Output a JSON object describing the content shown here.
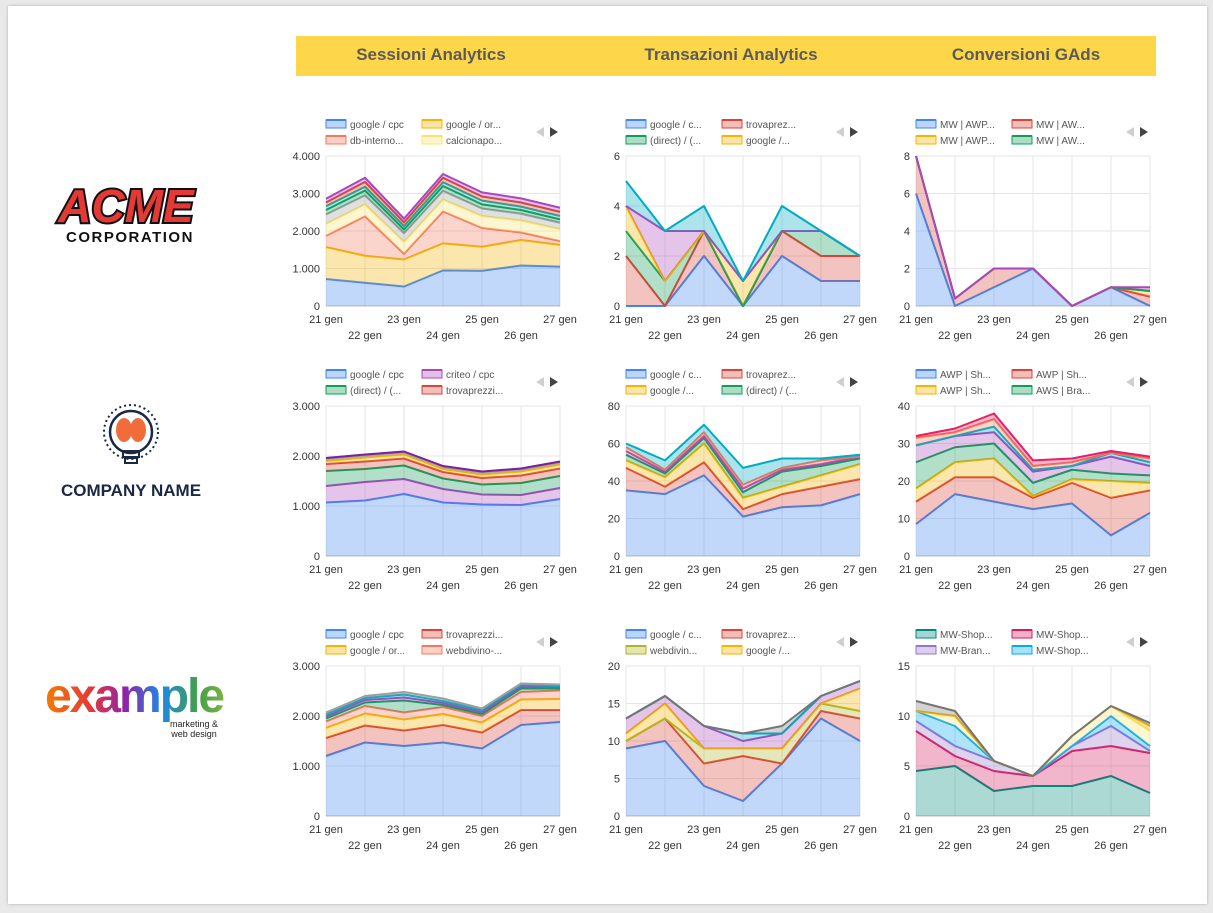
{
  "columns": [
    "Sessioni Analytics",
    "Transazioni Analytics",
    "Conversioni GAds"
  ],
  "logos": {
    "acme": {
      "line1": "ACME",
      "line2": "CORPORATION"
    },
    "company": {
      "name": "COMPANY NAME"
    },
    "example": {
      "word": "example",
      "tagline1": "marketing &",
      "tagline2": "web design"
    }
  },
  "chart_data": [
    {
      "type": "area",
      "stacked": true,
      "x": [
        "21 gen",
        "22 gen",
        "23 gen",
        "24 gen",
        "25 gen",
        "26 gen",
        "27 gen"
      ],
      "ylim": [
        0,
        4000
      ],
      "yticks": [
        0,
        1000,
        2000,
        3000,
        4000
      ],
      "ytick_labels": [
        "0",
        "1.000",
        "2.000",
        "3.000",
        "4.000"
      ],
      "legend": [
        "google / cpc",
        "google / or...",
        "db-interno...",
        "calcionapo..."
      ],
      "series": [
        {
          "name": "google / cpc",
          "color": "#4285f4",
          "values": [
            720,
            620,
            520,
            950,
            940,
            1080,
            1050
          ]
        },
        {
          "name": "google / or...",
          "color": "#f4b400",
          "values": [
            850,
            720,
            720,
            720,
            640,
            680,
            580
          ]
        },
        {
          "name": "db-interno...",
          "color": "#f4785f",
          "values": [
            300,
            1050,
            150,
            850,
            500,
            200,
            100
          ]
        },
        {
          "name": "calcionapo...",
          "color": "#fbe36c",
          "values": [
            320,
            320,
            320,
            320,
            320,
            320,
            320
          ]
        },
        {
          "color": "#9e9e9e",
          "values": [
            250,
            240,
            230,
            230,
            200,
            180,
            170
          ]
        },
        {
          "color": "#0f9d58",
          "values": [
            120,
            130,
            100,
            130,
            110,
            100,
            90
          ]
        },
        {
          "color": "#26a69a",
          "values": [
            100,
            100,
            90,
            100,
            100,
            90,
            90
          ]
        },
        {
          "color": "#db4437",
          "values": [
            100,
            130,
            100,
            120,
            110,
            110,
            110
          ]
        },
        {
          "color": "#ab47bc",
          "values": [
            100,
            110,
            100,
            100,
            110,
            110,
            110
          ]
        }
      ]
    },
    {
      "type": "area",
      "stacked": true,
      "x": [
        "21 gen",
        "22 gen",
        "23 gen",
        "24 gen",
        "25 gen",
        "26 gen",
        "27 gen"
      ],
      "ylim": [
        0,
        6
      ],
      "yticks": [
        0,
        2,
        4,
        6
      ],
      "ytick_labels": [
        "0",
        "2",
        "4",
        "6"
      ],
      "legend": [
        "google / c...",
        "trovaprez...",
        "(direct) / (...",
        "google /..."
      ],
      "series": [
        {
          "name": "google / c...",
          "color": "#4285f4",
          "values": [
            0,
            0,
            2,
            0,
            2,
            1,
            1
          ]
        },
        {
          "name": "trovaprez...",
          "color": "#db4437",
          "values": [
            2,
            0,
            1,
            0,
            1,
            1,
            1
          ]
        },
        {
          "name": "(direct) / (...",
          "color": "#0f9d58",
          "values": [
            1,
            1,
            0,
            0,
            0,
            1,
            0
          ]
        },
        {
          "name": "google /...",
          "color": "#f4b400",
          "values": [
            1,
            0,
            0,
            1,
            0,
            0,
            0
          ]
        },
        {
          "color": "#ab47bc",
          "values": [
            0,
            2,
            0,
            0,
            0,
            0,
            0
          ]
        },
        {
          "color": "#00acc1",
          "values": [
            1,
            0,
            1,
            0,
            1,
            0,
            0
          ]
        }
      ]
    },
    {
      "type": "area",
      "stacked": true,
      "x": [
        "21 gen",
        "22 gen",
        "23 gen",
        "24 gen",
        "25 gen",
        "26 gen",
        "27 gen"
      ],
      "ylim": [
        0,
        8
      ],
      "yticks": [
        0,
        2,
        4,
        6,
        8
      ],
      "ytick_labels": [
        "0",
        "2",
        "4",
        "6",
        "8"
      ],
      "legend": [
        "MW | AWP...",
        "MW | AW...",
        "MW | AWP...",
        "MW | AW..."
      ],
      "series": [
        {
          "name": "MW | AWP...",
          "color": "#4285f4",
          "values": [
            6,
            0,
            1,
            2,
            0,
            1,
            0
          ]
        },
        {
          "name": "MW | AW...",
          "color": "#db4437",
          "values": [
            2,
            0.4,
            1,
            0,
            0,
            0,
            0.5
          ]
        },
        {
          "name": "MW | AWP...",
          "color": "#f4b400",
          "values": [
            0,
            0,
            0,
            0,
            0,
            0,
            0.3
          ]
        },
        {
          "name": "MW | AW...",
          "color": "#0f9d58",
          "values": [
            0,
            0,
            0,
            0,
            0,
            0,
            0
          ]
        },
        {
          "color": "#ab47bc",
          "values": [
            0,
            0,
            0,
            0,
            0,
            0,
            0.2
          ]
        }
      ]
    },
    {
      "type": "area",
      "stacked": true,
      "x": [
        "21 gen",
        "22 gen",
        "23 gen",
        "24 gen",
        "25 gen",
        "26 gen",
        "27 gen"
      ],
      "ylim": [
        0,
        3000
      ],
      "yticks": [
        0,
        1000,
        2000,
        3000
      ],
      "ytick_labels": [
        "0",
        "1.000",
        "2.000",
        "3.000"
      ],
      "legend": [
        "google / cpc",
        "criteo / cpc",
        "(direct) / (...",
        "trovaprezzi..."
      ],
      "series": [
        {
          "name": "google / cpc",
          "color": "#4285f4",
          "values": [
            1070,
            1110,
            1240,
            1070,
            1030,
            1020,
            1140
          ]
        },
        {
          "name": "criteo / cpc",
          "color": "#ab47bc",
          "values": [
            330,
            370,
            300,
            270,
            200,
            200,
            220
          ]
        },
        {
          "name": "(direct) / (...",
          "color": "#0f9d58",
          "values": [
            300,
            260,
            270,
            210,
            200,
            240,
            240
          ]
        },
        {
          "name": "trovaprezzi...",
          "color": "#db4437",
          "values": [
            140,
            150,
            140,
            130,
            130,
            150,
            150
          ]
        },
        {
          "color": "#f4b400",
          "values": [
            60,
            80,
            80,
            60,
            70,
            80,
            80
          ]
        },
        {
          "color": "#9e9e9e",
          "values": [
            40,
            40,
            40,
            40,
            40,
            40,
            40
          ]
        },
        {
          "color": "#7b1fa2",
          "values": [
            20,
            20,
            20,
            20,
            20,
            20,
            20
          ]
        }
      ]
    },
    {
      "type": "area",
      "stacked": true,
      "x": [
        "21 gen",
        "22 gen",
        "23 gen",
        "24 gen",
        "25 gen",
        "26 gen",
        "27 gen"
      ],
      "ylim": [
        0,
        80
      ],
      "yticks": [
        0,
        20,
        40,
        60,
        80
      ],
      "ytick_labels": [
        "0",
        "20",
        "40",
        "60",
        "80"
      ],
      "legend": [
        "google / c...",
        "trovaprez...",
        "google /...",
        "(direct) / (..."
      ],
      "series": [
        {
          "name": "google / c...",
          "color": "#4285f4",
          "values": [
            35,
            33,
            43,
            21,
            26,
            27,
            33
          ]
        },
        {
          "name": "trovaprez...",
          "color": "#db4437",
          "values": [
            12,
            4,
            7,
            4,
            7,
            10,
            8
          ]
        },
        {
          "name": "google /...",
          "color": "#f4b400",
          "values": [
            4,
            5,
            10,
            6,
            4,
            6,
            8
          ]
        },
        {
          "name": "(direct) / (...",
          "color": "#0f9d58",
          "values": [
            3,
            2,
            3,
            3,
            8,
            5,
            3
          ]
        },
        {
          "color": "#ab47bc",
          "values": [
            2,
            1,
            1,
            2,
            1,
            1,
            1
          ]
        },
        {
          "color": "#f4785f",
          "values": [
            2,
            1,
            2,
            2,
            1,
            2,
            0
          ]
        },
        {
          "color": "#00acc1",
          "values": [
            2,
            5,
            4,
            9,
            5,
            1,
            1
          ]
        }
      ]
    },
    {
      "type": "area",
      "stacked": true,
      "x": [
        "21 gen",
        "22 gen",
        "23 gen",
        "24 gen",
        "25 gen",
        "26 gen",
        "27 gen"
      ],
      "ylim": [
        0,
        40
      ],
      "yticks": [
        0,
        10,
        20,
        30,
        40
      ],
      "ytick_labels": [
        "0",
        "10",
        "20",
        "30",
        "40"
      ],
      "legend": [
        "AWP | Sh...",
        "AWP | Sh...",
        "AWP | Sh...",
        "AWS | Bra..."
      ],
      "series": [
        {
          "name": "AWP | Sh...",
          "color": "#4285f4",
          "values": [
            8.5,
            16.5,
            14.5,
            12.5,
            14,
            5.5,
            11.5
          ]
        },
        {
          "name": "AWP | Sh...",
          "color": "#db4437",
          "values": [
            6,
            4.5,
            6.5,
            3,
            5.5,
            10,
            6
          ]
        },
        {
          "name": "AWP | Sh...",
          "color": "#f4b400",
          "values": [
            3.5,
            4,
            5,
            0.5,
            1,
            4.5,
            2
          ]
        },
        {
          "name": "AWS | Bra...",
          "color": "#0f9d58",
          "values": [
            7,
            4,
            4,
            3.5,
            2.5,
            2,
            2
          ]
        },
        {
          "color": "#ab47bc",
          "values": [
            4.5,
            3,
            3,
            3,
            1,
            4.5,
            2.5
          ]
        },
        {
          "color": "#00acc1",
          "values": [
            0,
            0,
            1.5,
            0.5,
            0,
            1,
            1
          ]
        },
        {
          "color": "#f4785f",
          "values": [
            2,
            1,
            2,
            1,
            1,
            0,
            1
          ]
        },
        {
          "color": "#e91e63",
          "values": [
            0.5,
            1,
            1.5,
            1.5,
            1,
            0.5,
            0.5
          ]
        }
      ]
    },
    {
      "type": "area",
      "stacked": true,
      "x": [
        "21 gen",
        "22 gen",
        "23 gen",
        "24 gen",
        "25 gen",
        "26 gen",
        "27 gen"
      ],
      "ylim": [
        0,
        3000
      ],
      "yticks": [
        0,
        1000,
        2000,
        3000
      ],
      "ytick_labels": [
        "0",
        "1.000",
        "2.000",
        "3.000"
      ],
      "legend": [
        "google / cpc",
        "trovaprezzi...",
        "google / or...",
        "webdivino-..."
      ],
      "series": [
        {
          "name": "google / cpc",
          "color": "#4285f4",
          "values": [
            1200,
            1470,
            1400,
            1470,
            1350,
            1820,
            1880
          ]
        },
        {
          "name": "trovaprezzi...",
          "color": "#db4437",
          "values": [
            360,
            340,
            310,
            350,
            320,
            300,
            240
          ]
        },
        {
          "name": "google / or...",
          "color": "#f4b400",
          "values": [
            200,
            240,
            220,
            220,
            200,
            210,
            220
          ]
        },
        {
          "name": "webdivino-...",
          "color": "#f4785f",
          "values": [
            130,
            150,
            140,
            140,
            130,
            150,
            170
          ]
        },
        {
          "color": "#0f9d58",
          "values": [
            60,
            70,
            240,
            40,
            40,
            70,
            40
          ]
        },
        {
          "color": "#ab47bc",
          "values": [
            40,
            50,
            60,
            40,
            40,
            40,
            30
          ]
        },
        {
          "color": "#00acc1",
          "values": [
            40,
            40,
            60,
            40,
            40,
            30,
            20
          ]
        },
        {
          "color": "#9e9e9e",
          "values": [
            40,
            40,
            50,
            50,
            30,
            30,
            30
          ]
        }
      ]
    },
    {
      "type": "area",
      "stacked": true,
      "x": [
        "21 gen",
        "22 gen",
        "23 gen",
        "24 gen",
        "25 gen",
        "26 gen",
        "27 gen"
      ],
      "ylim": [
        0,
        20
      ],
      "yticks": [
        0,
        5,
        10,
        15,
        20
      ],
      "ytick_labels": [
        "0",
        "5",
        "10",
        "15",
        "20"
      ],
      "legend": [
        "google / c...",
        "trovaprez...",
        "webdivin...",
        "google /..."
      ],
      "series": [
        {
          "name": "google / c...",
          "color": "#4285f4",
          "values": [
            9,
            10,
            4,
            2,
            7,
            13,
            10
          ]
        },
        {
          "name": "trovaprez...",
          "color": "#db4437",
          "values": [
            1,
            3,
            3,
            6,
            0,
            1,
            3
          ]
        },
        {
          "name": "webdivin...",
          "color": "#afb42b",
          "values": [
            0,
            0,
            2,
            1,
            2,
            1,
            1
          ]
        },
        {
          "name": "google /...",
          "color": "#f4b400",
          "values": [
            1,
            2,
            0,
            0,
            0,
            0,
            3
          ]
        },
        {
          "color": "#ab47bc",
          "values": [
            2,
            1,
            3,
            1,
            2,
            1,
            1
          ]
        },
        {
          "color": "#00acc1",
          "values": [
            0,
            0,
            0,
            1,
            0,
            0,
            0
          ]
        },
        {
          "color": "#757575",
          "values": [
            0,
            0,
            0,
            0,
            1,
            0,
            0
          ]
        }
      ]
    },
    {
      "type": "area",
      "stacked": true,
      "x": [
        "21 gen",
        "22 gen",
        "23 gen",
        "24 gen",
        "25 gen",
        "26 gen",
        "27 gen"
      ],
      "ylim": [
        0,
        15
      ],
      "yticks": [
        0,
        5,
        10,
        15
      ],
      "ytick_labels": [
        "0",
        "5",
        "10",
        "15"
      ],
      "legend": [
        "MW-Shop...",
        "MW-Shop...",
        "MW-Bran...",
        "MW-Shop..."
      ],
      "series": [
        {
          "name": "MW-Shop...",
          "color": "#00897b",
          "values": [
            4.5,
            5,
            2.5,
            3,
            3,
            4,
            2.3
          ]
        },
        {
          "name": "MW-Shop...",
          "color": "#d81b60",
          "values": [
            4,
            1,
            2,
            1,
            3.5,
            3,
            4
          ]
        },
        {
          "name": "MW-Bran...",
          "color": "#9575cd",
          "values": [
            1,
            1,
            1,
            0,
            0.5,
            2,
            0.2
          ]
        },
        {
          "name": "MW-Shop...",
          "color": "#03a9f4",
          "values": [
            1,
            2,
            0,
            0,
            0,
            1,
            0.5
          ]
        },
        {
          "color": "#fbe36c",
          "values": [
            0,
            1,
            0,
            0,
            1,
            1,
            1.5
          ]
        },
        {
          "color": "#f4b400",
          "values": [
            0,
            0,
            0,
            0,
            0,
            0,
            0.5
          ]
        },
        {
          "color": "#757575",
          "values": [
            1,
            0.5,
            0,
            0,
            0,
            0,
            0.3
          ]
        }
      ]
    }
  ]
}
